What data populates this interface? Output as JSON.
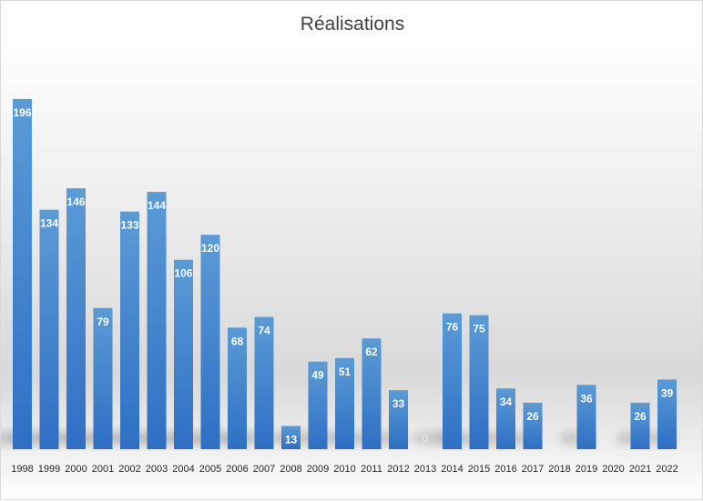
{
  "chart_data": {
    "type": "bar",
    "title": "Réalisations",
    "xlabel": "",
    "ylabel": "",
    "categories": [
      "1998",
      "1999",
      "2000",
      "2001",
      "2002",
      "2003",
      "2004",
      "2005",
      "2006",
      "2007",
      "2008",
      "2009",
      "2010",
      "2011",
      "2012",
      "2013",
      "2014",
      "2015",
      "2016",
      "2017",
      "2018",
      "2019",
      "2020",
      "2021",
      "2022"
    ],
    "values": [
      196,
      134,
      146,
      79,
      133,
      144,
      106,
      120,
      68,
      74,
      13,
      49,
      51,
      62,
      33,
      0,
      76,
      75,
      34,
      26,
      0,
      36,
      0,
      26,
      39
    ],
    "data_labels": [
      "196",
      "134",
      "146",
      "79",
      "133",
      "144",
      "106",
      "120",
      "68",
      "74",
      "13",
      "49",
      "51",
      "62",
      "33",
      "0",
      "76",
      "75",
      "34",
      "26",
      "0",
      "36",
      "0",
      "26",
      "39"
    ],
    "ylim": [
      0,
      200
    ],
    "grid": false,
    "legend": "none",
    "bar_color": "#2e75c9",
    "bar_color_light": "#5b9bd5"
  }
}
